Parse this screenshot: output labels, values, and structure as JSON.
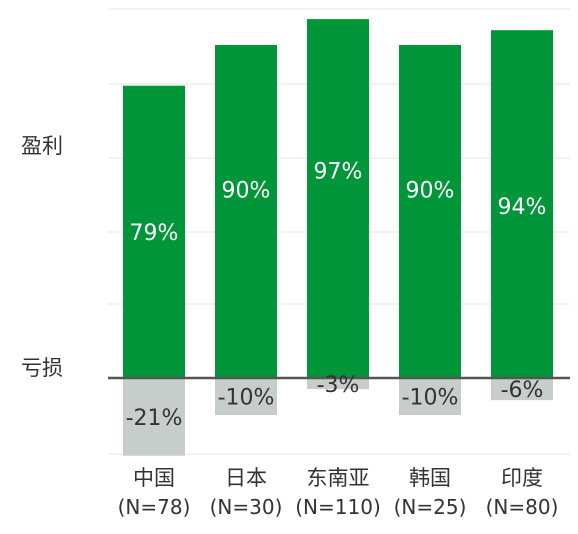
{
  "chart_data": {
    "type": "bar",
    "categories": [
      "中国",
      "日本",
      "东南亚",
      "韩国",
      "印度"
    ],
    "category_sublabels": [
      "(N=78)",
      "(N=30)",
      "(N=110)",
      "(N=25)",
      "(N=80)"
    ],
    "series": [
      {
        "name": "盈利",
        "values": [
          79,
          90,
          97,
          90,
          94
        ],
        "labels": [
          "79%",
          "90%",
          "97%",
          "90%",
          "94%"
        ],
        "color": "#009639"
      },
      {
        "name": "亏损",
        "values": [
          -21,
          -10,
          -3,
          -10,
          -6
        ],
        "labels": [
          "-21%",
          "-10%",
          "-3%",
          "-10%",
          "-6%"
        ],
        "color": "#c6cdcb"
      }
    ],
    "ylim": [
      -21,
      97
    ],
    "grid": true,
    "baseline_color": "#555555",
    "grid_color": "#e6e6e6",
    "label_color": "#ffffff",
    "text_color": "#333333"
  }
}
